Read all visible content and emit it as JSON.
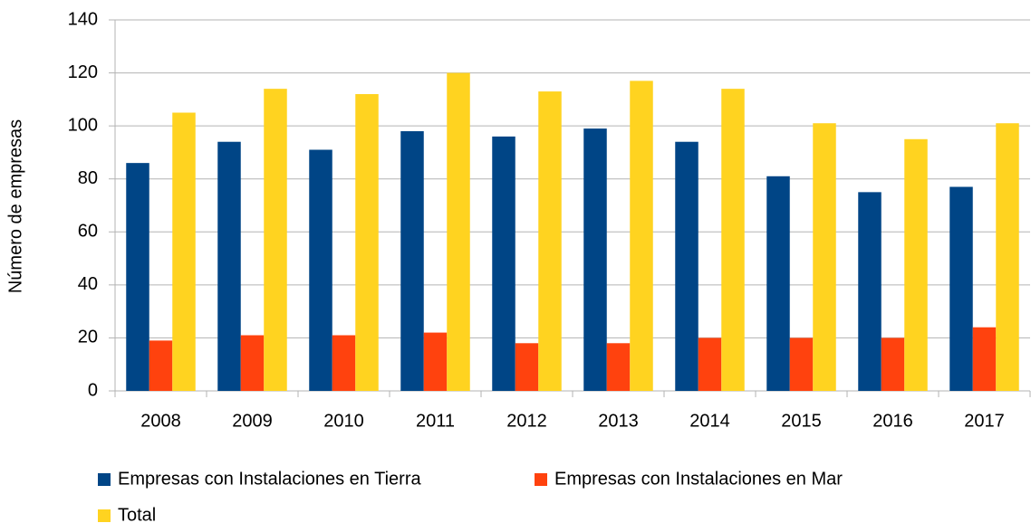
{
  "chart_data": {
    "type": "bar",
    "y_label": "Número de empresas",
    "categories": [
      "2008",
      "2009",
      "2010",
      "2011",
      "2012",
      "2013",
      "2014",
      "2015",
      "2016",
      "2017"
    ],
    "series": [
      {
        "name": "Empresas con Instalaciones en Tierra",
        "color": "#004586",
        "values": [
          86,
          94,
          91,
          98,
          96,
          99,
          94,
          81,
          75,
          77
        ]
      },
      {
        "name": "Empresas con Instalaciones en Mar",
        "color": "#ff420e",
        "values": [
          19,
          21,
          21,
          22,
          18,
          18,
          20,
          20,
          20,
          24
        ]
      },
      {
        "name": "Total",
        "color": "#ffd320",
        "values": [
          105,
          114,
          112,
          120,
          113,
          117,
          114,
          101,
          95,
          101
        ]
      }
    ],
    "ylim": [
      0,
      140
    ],
    "yticks": [
      0,
      20,
      40,
      60,
      80,
      100,
      120,
      140
    ],
    "grid": true,
    "legend": "bottom"
  }
}
